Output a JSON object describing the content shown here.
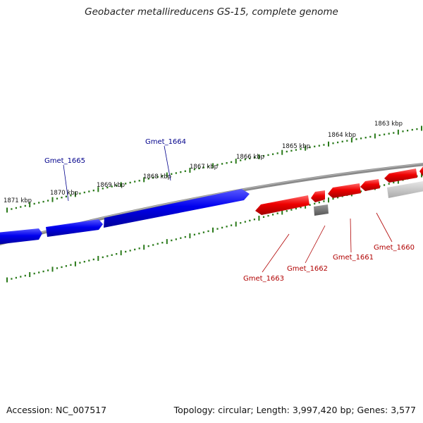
{
  "title": "Geobacter metallireducens GS-15, complete genome",
  "footer": {
    "accession": "Accession: NC_007517",
    "summary": "Topology: circular; Length: 3,997,420 bp; Genes: 3,577"
  },
  "colors": {
    "forward_gene": "#0000e6",
    "reverse_gene": "#ee0000",
    "other_feature": "#999999",
    "backbone": "#888888",
    "ticks": "#2a7a1a",
    "label_forward": "#00008b",
    "label_reverse": "#b00000"
  },
  "ticks": [
    {
      "label": "1863 kbp"
    },
    {
      "label": "1864 kbp"
    },
    {
      "label": "1865 kbp"
    },
    {
      "label": "1866 kbp"
    },
    {
      "label": "1867 kbp"
    },
    {
      "label": "1868 kbp"
    },
    {
      "label": "1869 kbp"
    },
    {
      "label": "1870 kbp"
    },
    {
      "label": "1871 kbp"
    }
  ],
  "genes": [
    {
      "label": "Gmet_1665",
      "strand": "forward"
    },
    {
      "label": "Gmet_1664",
      "strand": "forward"
    },
    {
      "label": "Gmet_1663",
      "strand": "reverse"
    },
    {
      "label": "Gmet_1662",
      "strand": "reverse"
    },
    {
      "label": "Gmet_1661",
      "strand": "reverse"
    },
    {
      "label": "Gmet_1660",
      "strand": "reverse"
    }
  ]
}
